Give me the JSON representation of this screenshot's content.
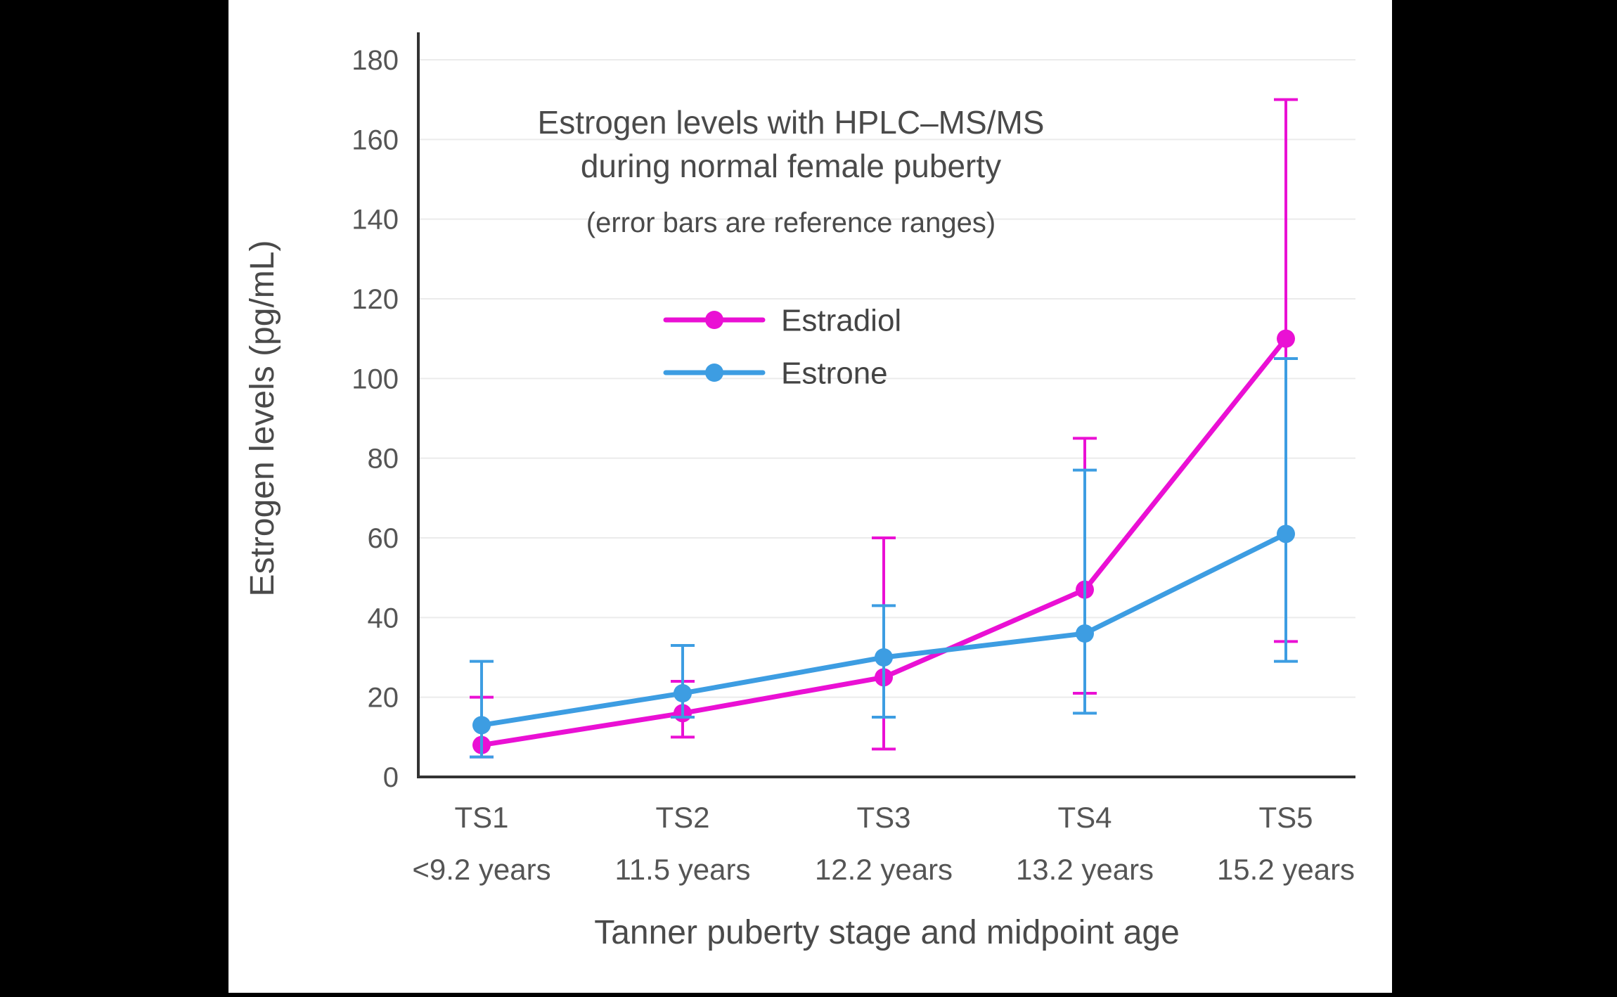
{
  "window": {
    "background": "#000000",
    "panel_background": "#ffffff"
  },
  "chart_data": {
    "type": "line",
    "title": "Estrogen levels with HPLC–MS/MS",
    "title_line2": "during normal female puberty",
    "subtitle": "(error bars are reference ranges)",
    "xlabel": "Tanner puberty stage and midpoint age",
    "ylabel": "Estrogen levels (pg/mL)",
    "ylim": [
      0,
      180
    ],
    "ytick_step": 20,
    "grid": true,
    "legend_position": "inside-upper-left",
    "categories": [
      "TS1",
      "TS2",
      "TS3",
      "TS4",
      "TS5"
    ],
    "category_sublabels": [
      "<9.2 years",
      "11.5 years",
      "12.2 years",
      "13.2 years",
      "15.2 years"
    ],
    "series": [
      {
        "name": "Estradiol",
        "color": "#EA10D4",
        "values": [
          8,
          16,
          25,
          47,
          110
        ],
        "error_low": [
          5,
          10,
          7,
          21,
          34
        ],
        "error_high": [
          20,
          24,
          60,
          85,
          170
        ]
      },
      {
        "name": "Estrone",
        "color": "#3D9DE2",
        "values": [
          13,
          21,
          30,
          36,
          61
        ],
        "error_low": [
          5,
          15,
          15,
          16,
          29
        ],
        "error_high": [
          29,
          33,
          43,
          77,
          105
        ]
      }
    ],
    "colors": {
      "grid": "#EBEBEB",
      "axis": "#333333",
      "tick_text": "#555555",
      "title_text": "#4A4A4A",
      "legend_text": "#444444"
    }
  }
}
